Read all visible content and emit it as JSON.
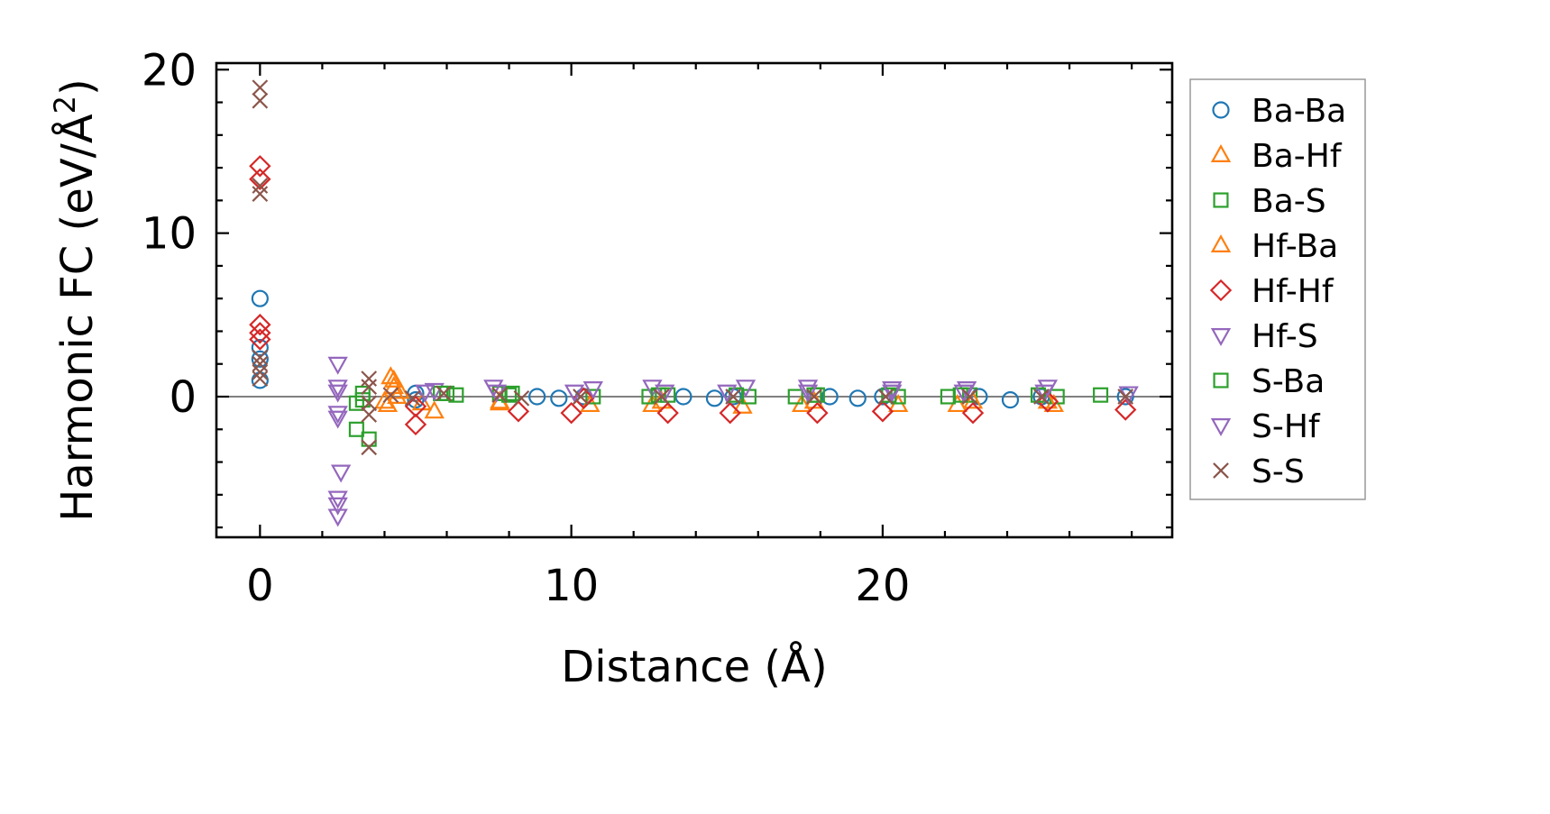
{
  "chart_data": {
    "type": "scatter",
    "title": "",
    "xlabel": "Distance (Å)",
    "ylabel_main": "Harmonic FC (eV/Å",
    "ylabel_sup": "2",
    "ylabel_close": ")",
    "xlim": [
      -1.4,
      29.3
    ],
    "ylim": [
      -8.6,
      20.4
    ],
    "xticks": [
      0,
      10,
      20
    ],
    "yticks": [
      0,
      10,
      20
    ],
    "xtick_labels": [
      "0",
      "10",
      "20"
    ],
    "ytick_labels": [
      "0",
      "10",
      "20"
    ],
    "x_minor_step": 2,
    "y_minor_step": 2,
    "grid": false,
    "zero_line": true,
    "legend_position": "outside-right",
    "series": [
      {
        "name": "Ba-Ba",
        "marker": "circle",
        "color": "#1f77b4",
        "points": [
          [
            0,
            6.0
          ],
          [
            0,
            3.0
          ],
          [
            0,
            2.3
          ],
          [
            0,
            1.0
          ],
          [
            5.0,
            0.2
          ],
          [
            5.0,
            -0.2
          ],
          [
            8.9,
            0.0
          ],
          [
            9.6,
            -0.1
          ],
          [
            10.4,
            0.0
          ],
          [
            13.6,
            0.0
          ],
          [
            14.6,
            -0.1
          ],
          [
            15.2,
            0.0
          ],
          [
            18.3,
            0.0
          ],
          [
            19.2,
            -0.1
          ],
          [
            20.0,
            0.0
          ],
          [
            23.1,
            0.0
          ],
          [
            24.1,
            -0.2
          ],
          [
            25.1,
            0.0
          ],
          [
            27.8,
            0.0
          ]
        ]
      },
      {
        "name": "Ba-Hf",
        "marker": "triangle-up",
        "color": "#ff7f0e",
        "points": [
          [
            4.2,
            1.2
          ],
          [
            4.3,
            0.6
          ],
          [
            4.4,
            0.0
          ],
          [
            4.1,
            -0.5
          ],
          [
            5.6,
            -0.9
          ],
          [
            5.2,
            -0.4
          ],
          [
            7.7,
            -0.4
          ],
          [
            10.6,
            -0.5
          ],
          [
            12.6,
            -0.5
          ],
          [
            15.5,
            -0.6
          ],
          [
            17.4,
            -0.5
          ],
          [
            20.5,
            -0.5
          ],
          [
            22.4,
            -0.5
          ],
          [
            25.5,
            -0.5
          ]
        ]
      },
      {
        "name": "Ba-S",
        "marker": "square",
        "color": "#2ca02c",
        "points": [
          [
            3.1,
            -0.4
          ],
          [
            3.1,
            -2.0
          ],
          [
            3.5,
            -2.6
          ],
          [
            3.3,
            -0.2
          ],
          [
            5.8,
            0.2
          ],
          [
            6.3,
            0.1
          ],
          [
            7.7,
            0.2
          ],
          [
            8.1,
            0.2
          ],
          [
            10.7,
            0.0
          ],
          [
            12.5,
            0.0
          ],
          [
            13.1,
            0.1
          ],
          [
            15.7,
            0.0
          ],
          [
            17.2,
            0.0
          ],
          [
            17.8,
            0.1
          ],
          [
            20.5,
            0.0
          ],
          [
            22.1,
            0.0
          ],
          [
            22.8,
            0.1
          ],
          [
            25.6,
            0.0
          ],
          [
            27.0,
            0.1
          ]
        ]
      },
      {
        "name": "Hf-Ba",
        "marker": "triangle-up",
        "color": "#ff7f0e",
        "points": [
          [
            4.3,
            1.0
          ],
          [
            4.5,
            0.3
          ],
          [
            4.0,
            -0.3
          ],
          [
            7.7,
            -0.3
          ],
          [
            12.9,
            -0.3
          ],
          [
            17.8,
            -0.3
          ],
          [
            22.9,
            -0.3
          ],
          [
            25.3,
            -0.3
          ]
        ]
      },
      {
        "name": "Hf-Hf",
        "marker": "diamond",
        "color": "#d62728",
        "points": [
          [
            0,
            14.1
          ],
          [
            0,
            13.3
          ],
          [
            0,
            4.4
          ],
          [
            0,
            3.9
          ],
          [
            0,
            3.5
          ],
          [
            5.0,
            -1.7
          ],
          [
            5.0,
            -0.6
          ],
          [
            8.3,
            -0.9
          ],
          [
            10.0,
            -1.0
          ],
          [
            10.4,
            -0.1
          ],
          [
            13.1,
            -1.0
          ],
          [
            15.1,
            -1.0
          ],
          [
            17.9,
            -1.0
          ],
          [
            20.0,
            -0.9
          ],
          [
            22.9,
            -1.0
          ],
          [
            25.3,
            -0.3
          ],
          [
            27.8,
            -0.8
          ]
        ]
      },
      {
        "name": "Hf-S",
        "marker": "triangle-down",
        "color": "#9467bd",
        "points": [
          [
            2.5,
            2.0
          ],
          [
            2.5,
            0.6
          ],
          [
            2.5,
            -1.3
          ],
          [
            2.6,
            -4.6
          ],
          [
            2.5,
            -6.2
          ],
          [
            2.5,
            -6.6
          ],
          [
            2.5,
            -7.3
          ],
          [
            5.6,
            0.4
          ],
          [
            7.5,
            0.6
          ],
          [
            10.7,
            0.5
          ],
          [
            12.6,
            0.6
          ],
          [
            15.6,
            0.6
          ],
          [
            17.6,
            0.6
          ],
          [
            20.3,
            0.5
          ],
          [
            22.7,
            0.5
          ],
          [
            25.3,
            0.6
          ],
          [
            27.9,
            0.2
          ]
        ]
      },
      {
        "name": "S-Ba",
        "marker": "square",
        "color": "#2ca02c",
        "points": [
          [
            3.3,
            0.2
          ],
          [
            6.0,
            0.2
          ],
          [
            8.0,
            0.1
          ],
          [
            12.8,
            0.1
          ],
          [
            15.3,
            0.1
          ],
          [
            17.9,
            0.1
          ],
          [
            20.2,
            0.1
          ],
          [
            22.5,
            0.1
          ],
          [
            25.0,
            0.1
          ]
        ]
      },
      {
        "name": "S-Hf",
        "marker": "triangle-down",
        "color": "#9467bd",
        "points": [
          [
            2.5,
            0.3
          ],
          [
            2.5,
            -1.0
          ],
          [
            5.3,
            0.3
          ],
          [
            7.6,
            0.3
          ],
          [
            10.1,
            0.3
          ],
          [
            13.0,
            0.3
          ],
          [
            15.0,
            0.3
          ],
          [
            17.6,
            0.3
          ],
          [
            20.3,
            0.3
          ],
          [
            22.6,
            0.3
          ],
          [
            25.2,
            0.3
          ]
        ]
      },
      {
        "name": "S-S",
        "marker": "x",
        "color": "#8c564b",
        "points": [
          [
            0,
            18.9
          ],
          [
            0,
            18.1
          ],
          [
            0,
            12.9
          ],
          [
            0,
            12.4
          ],
          [
            0,
            2.4
          ],
          [
            0,
            2.0
          ],
          [
            0,
            1.5
          ],
          [
            0,
            1.1
          ],
          [
            3.5,
            1.1
          ],
          [
            3.5,
            0.6
          ],
          [
            3.5,
            -0.4
          ],
          [
            3.5,
            -1.1
          ],
          [
            3.5,
            -3.1
          ],
          [
            4.2,
            0.1
          ],
          [
            4.9,
            -0.1
          ],
          [
            5.9,
            0.2
          ],
          [
            7.7,
            0.1
          ],
          [
            8.4,
            -0.1
          ],
          [
            10.3,
            0.0
          ],
          [
            12.9,
            0.0
          ],
          [
            15.2,
            0.0
          ],
          [
            17.8,
            0.0
          ],
          [
            20.1,
            0.0
          ],
          [
            22.8,
            0.0
          ],
          [
            25.1,
            0.0
          ],
          [
            27.8,
            0.0
          ]
        ]
      }
    ]
  }
}
